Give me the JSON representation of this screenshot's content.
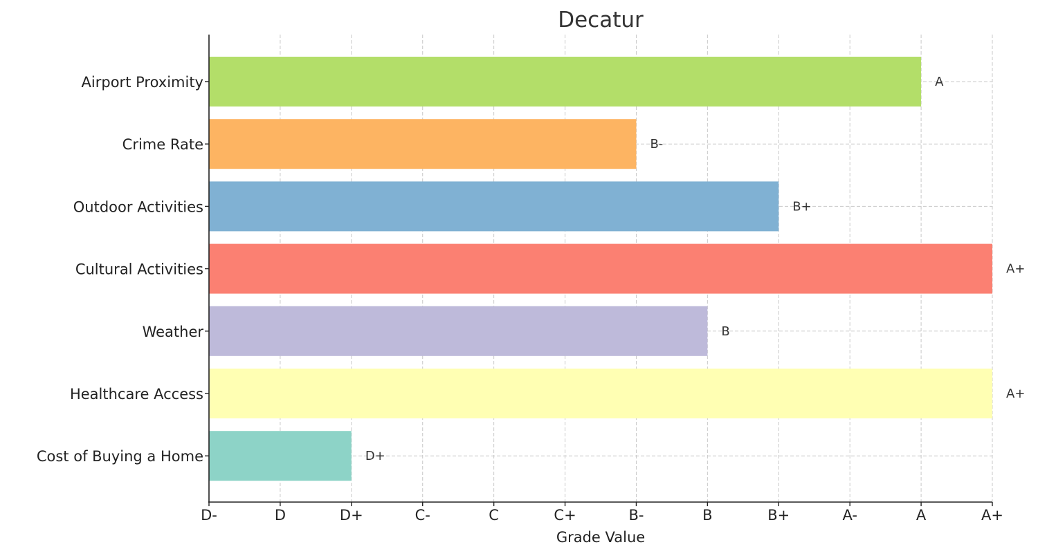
{
  "chart_data": {
    "type": "bar",
    "orientation": "horizontal",
    "title": "Decatur",
    "xlabel": "Grade Value",
    "ylabel": "",
    "x_ticks": [
      "D-",
      "D",
      "D+",
      "C-",
      "C",
      "C+",
      "B-",
      "B",
      "B+",
      "A-",
      "A",
      "A+"
    ],
    "xlim": [
      0,
      11
    ],
    "grid": true,
    "categories": [
      "Airport Proximity",
      "Crime Rate",
      "Outdoor Activities",
      "Cultural Activities",
      "Weather",
      "Healthcare Access",
      "Cost of Buying a Home"
    ],
    "values": [
      10,
      6,
      8,
      11,
      7,
      11,
      2
    ],
    "value_labels": [
      "A",
      "B-",
      "B+",
      "A+",
      "B",
      "A+",
      "D+"
    ],
    "colors": [
      "#b3de69",
      "#fdb462",
      "#80b1d3",
      "#fb8072",
      "#bebada",
      "#ffffb3",
      "#8dd3c7"
    ]
  }
}
